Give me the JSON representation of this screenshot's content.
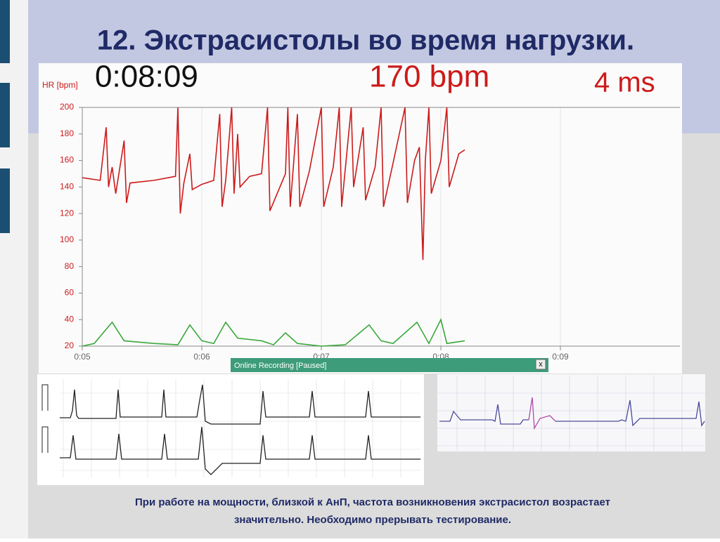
{
  "slide": {
    "title": "12. Экстрасистолы во время нагрузки.",
    "caption": [
      "При работе на мощности, близкой к АнП, частота возникновения экстрасистол возрастает",
      "значительно. Необходимо прерывать тестирование."
    ]
  },
  "monitor": {
    "time": "0:08:09",
    "hr": "170 bpm",
    "interval": "4 ms",
    "status": "Online Recording [Paused]",
    "close": "x"
  },
  "chart_data": {
    "type": "line",
    "y_label": "HR [bpm]",
    "xlim": [
      5,
      10
    ],
    "ylim": [
      20,
      200
    ],
    "xticks": [
      {
        "value": 5,
        "label": "0:05"
      },
      {
        "value": 6,
        "label": "0:06"
      },
      {
        "value": 7,
        "label": "0:07"
      },
      {
        "value": 8,
        "label": "0:08"
      },
      {
        "value": 9,
        "label": "0:09"
      }
    ],
    "yticks": [
      200,
      180,
      160,
      140,
      120,
      100,
      80,
      60,
      40,
      20
    ],
    "grid": true,
    "series": [
      {
        "color": "#cc1b1b",
        "x": [
          5.0,
          5.15,
          5.2,
          5.22,
          5.25,
          5.28,
          5.35,
          5.37,
          5.4,
          5.6,
          5.78,
          5.8,
          5.82,
          5.85,
          5.9,
          5.92,
          6.0,
          6.1,
          6.15,
          6.17,
          6.2,
          6.25,
          6.27,
          6.3,
          6.32,
          6.4,
          6.5,
          6.55,
          6.57,
          6.7,
          6.72,
          6.74,
          6.8,
          6.82,
          6.9,
          7.0,
          7.02,
          7.1,
          7.15,
          7.17,
          7.25,
          7.27,
          7.35,
          7.37,
          7.45,
          7.5,
          7.52,
          7.6,
          7.7,
          7.72,
          7.78,
          7.82,
          7.85,
          7.87,
          7.9,
          7.92,
          8.0,
          8.05,
          8.07,
          8.15,
          8.2
        ],
        "values": [
          147,
          145,
          185,
          140,
          155,
          135,
          175,
          128,
          143,
          145,
          148,
          200,
          120,
          143,
          165,
          138,
          142,
          145,
          195,
          125,
          145,
          200,
          135,
          180,
          140,
          148,
          150,
          200,
          122,
          150,
          200,
          125,
          195,
          125,
          152,
          200,
          125,
          155,
          200,
          125,
          200,
          140,
          185,
          130,
          155,
          200,
          125,
          158,
          200,
          128,
          160,
          170,
          85,
          160,
          200,
          135,
          160,
          200,
          140,
          165,
          168
        ]
      },
      {
        "color": "#3aa83a",
        "x": [
          5.0,
          5.1,
          5.25,
          5.35,
          5.6,
          5.8,
          5.9,
          6.0,
          6.1,
          6.2,
          6.3,
          6.5,
          6.6,
          6.7,
          6.8,
          7.0,
          7.2,
          7.4,
          7.5,
          7.6,
          7.8,
          7.9,
          8.0,
          8.05,
          8.2
        ],
        "values": [
          20,
          22,
          38,
          24,
          22,
          21,
          36,
          24,
          22,
          38,
          26,
          24,
          21,
          30,
          22,
          20,
          21,
          36,
          24,
          22,
          38,
          22,
          40,
          22,
          24
        ]
      }
    ]
  }
}
